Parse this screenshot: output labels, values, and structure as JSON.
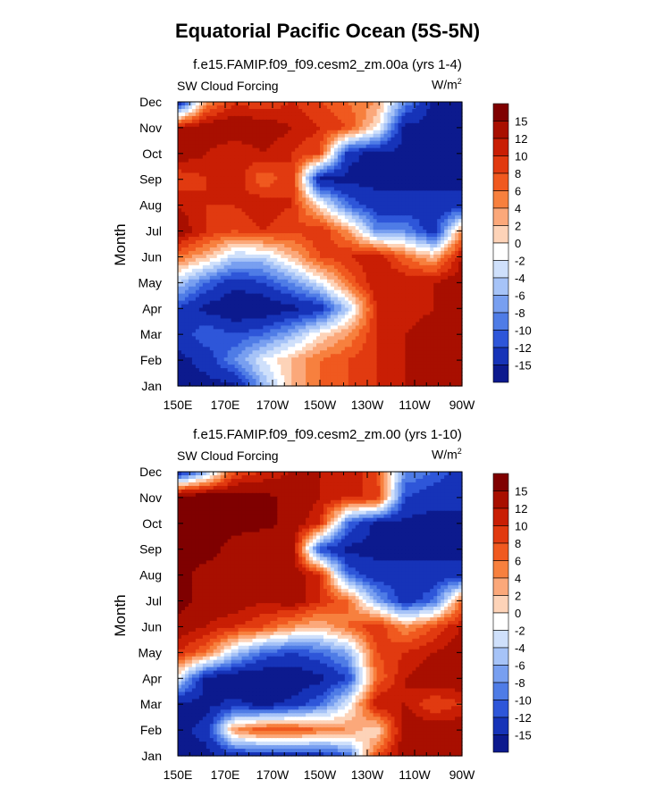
{
  "main_title": "Equatorial Pacific Ocean (5S-5N)",
  "panels": [
    {
      "title": "f.e15.FAMIP.f09_f09.cesm2_zm.00a (yrs 1-4)",
      "left_label": "SW Cloud Forcing",
      "units_base": "W/m",
      "units_sup": "2",
      "ylabel": "Month"
    },
    {
      "title": "f.e15.FAMIP.f09_f09.cesm2_zm.00 (yrs 1-10)",
      "left_label": "SW Cloud Forcing",
      "units_base": "W/m",
      "units_sup": "2",
      "ylabel": "Month"
    }
  ],
  "colorbar": {
    "labels": [
      "15",
      "12",
      "10",
      "8",
      "6",
      "4",
      "2",
      "0",
      "-2",
      "-4",
      "-6",
      "-8",
      "-10",
      "-12",
      "-15"
    ],
    "colors": [
      "#7f0000",
      "#a80f00",
      "#c91e04",
      "#e13a10",
      "#f0591f",
      "#f7803e",
      "#fba87a",
      "#fdd3b8",
      "#ffffff",
      "#cfe0fb",
      "#a6c3f7",
      "#789ff0",
      "#4f7ce6",
      "#2e56d9",
      "#1633b8",
      "#0c1a8e"
    ]
  },
  "chart_data": [
    {
      "type": "heatmap",
      "title": "f.e15.FAMIP.f09_f09.cesm2_zm.00a (yrs 1-4)",
      "subtitle": "SW Cloud Forcing",
      "units": "W/m2",
      "ylabel": "Month",
      "x_ticks": [
        "150E",
        "170E",
        "170W",
        "150W",
        "130W",
        "110W",
        "90W"
      ],
      "x_lon": [
        150,
        170,
        190,
        210,
        230,
        250,
        270
      ],
      "y_ticks": [
        "Jan",
        "Feb",
        "Mar",
        "Apr",
        "May",
        "Jun",
        "Jul",
        "Aug",
        "Sep",
        "Oct",
        "Nov",
        "Dec"
      ],
      "colorbar_levels": [
        -15,
        -12,
        -10,
        -8,
        -6,
        -4,
        -2,
        0,
        2,
        4,
        6,
        8,
        10,
        12,
        15
      ],
      "values": [
        [
          -16,
          -16,
          -16,
          -6,
          2,
          6,
          8,
          10,
          12,
          14,
          12
        ],
        [
          -16,
          -14,
          -8,
          -2,
          2,
          6,
          8,
          10,
          12,
          12,
          12
        ],
        [
          -14,
          -10,
          -12,
          -10,
          -6,
          0,
          4,
          10,
          12,
          14,
          14
        ],
        [
          -12,
          -16,
          -18,
          -18,
          -16,
          -14,
          -4,
          10,
          10,
          12,
          12
        ],
        [
          -4,
          -10,
          -14,
          -12,
          -8,
          -2,
          6,
          12,
          12,
          12,
          14
        ],
        [
          6,
          2,
          -4,
          -4,
          2,
          8,
          10,
          12,
          6,
          2,
          12
        ],
        [
          14,
          10,
          8,
          10,
          8,
          10,
          4,
          -8,
          -8,
          -14,
          4
        ],
        [
          12,
          10,
          10,
          12,
          10,
          0,
          -10,
          -14,
          -14,
          -14,
          -14
        ],
        [
          8,
          10,
          12,
          6,
          10,
          -16,
          -16,
          -16,
          -16,
          -16,
          -16
        ],
        [
          14,
          12,
          10,
          12,
          10,
          8,
          -14,
          -16,
          -16,
          -16,
          -16
        ],
        [
          12,
          14,
          14,
          14,
          12,
          10,
          8,
          0,
          -16,
          -16,
          -16
        ],
        [
          -16,
          4,
          10,
          8,
          10,
          8,
          6,
          4,
          -8,
          -16,
          -16
        ]
      ]
    },
    {
      "type": "heatmap",
      "title": "f.e15.FAMIP.f09_f09.cesm2_zm.00 (yrs 1-10)",
      "subtitle": "SW Cloud Forcing",
      "units": "W/m2",
      "ylabel": "Month",
      "x_ticks": [
        "150E",
        "170E",
        "170W",
        "150W",
        "130W",
        "110W",
        "90W"
      ],
      "x_lon": [
        150,
        170,
        190,
        210,
        230,
        250,
        270
      ],
      "y_ticks": [
        "Jan",
        "Feb",
        "Mar",
        "Apr",
        "May",
        "Jun",
        "Jul",
        "Aug",
        "Sep",
        "Oct",
        "Nov",
        "Dec"
      ],
      "colorbar_levels": [
        -15,
        -12,
        -10,
        -8,
        -6,
        -4,
        -2,
        0,
        2,
        4,
        6,
        8,
        10,
        12,
        15
      ],
      "values": [
        [
          -16,
          -16,
          -14,
          -14,
          -14,
          -14,
          -10,
          8,
          14,
          14,
          14
        ],
        [
          -16,
          -14,
          4,
          8,
          8,
          6,
          4,
          0,
          14,
          14,
          14
        ],
        [
          -16,
          -16,
          -14,
          -16,
          -14,
          -10,
          -2,
          12,
          12,
          8,
          10
        ],
        [
          -2,
          -16,
          -18,
          -18,
          -18,
          -16,
          -12,
          6,
          12,
          14,
          14
        ],
        [
          10,
          6,
          -4,
          -10,
          -12,
          -10,
          -6,
          8,
          10,
          12,
          14
        ],
        [
          14,
          12,
          10,
          8,
          4,
          2,
          6,
          10,
          4,
          8,
          12
        ],
        [
          16,
          14,
          14,
          12,
          14,
          10,
          6,
          -6,
          -14,
          -10,
          6
        ],
        [
          16,
          14,
          14,
          12,
          14,
          10,
          -10,
          -14,
          -14,
          -14,
          -14
        ],
        [
          16,
          16,
          14,
          12,
          14,
          -12,
          -16,
          -16,
          -16,
          -16,
          -16
        ],
        [
          18,
          16,
          16,
          16,
          14,
          10,
          -10,
          -16,
          -16,
          -16,
          -16
        ],
        [
          18,
          18,
          16,
          16,
          14,
          12,
          10,
          10,
          -12,
          -14,
          -14
        ],
        [
          -16,
          -6,
          8,
          10,
          12,
          12,
          12,
          8,
          -8,
          -10,
          -14
        ]
      ]
    }
  ]
}
